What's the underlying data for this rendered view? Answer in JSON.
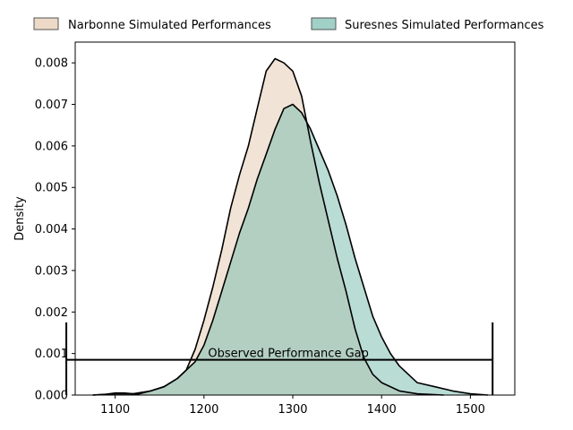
{
  "chart_data": {
    "type": "area",
    "title": "",
    "xlabel": "",
    "ylabel": "Density",
    "xlim": [
      1055,
      1550
    ],
    "ylim": [
      0,
      0.0085
    ],
    "x_ticks": [
      1100,
      1200,
      1300,
      1400,
      1500
    ],
    "y_ticks": [
      0.0,
      0.001,
      0.002,
      0.003,
      0.004,
      0.005,
      0.006,
      0.007,
      0.008
    ],
    "x_tick_labels": [
      "1100",
      "1200",
      "1300",
      "1400",
      "1500"
    ],
    "y_tick_labels": [
      "0.000",
      "0.001",
      "0.002",
      "0.003",
      "0.004",
      "0.005",
      "0.006",
      "0.007",
      "0.008"
    ],
    "grid": false,
    "legend_position": "top, outside plot",
    "series": [
      {
        "name": "Narbonne Simulated Performances",
        "color": "#e6ccb3",
        "points": [
          [
            1075,
            0
          ],
          [
            1100,
            3e-05
          ],
          [
            1120,
            3e-05
          ],
          [
            1140,
            0.0001
          ],
          [
            1155,
            0.0002
          ],
          [
            1170,
            0.0004
          ],
          [
            1180,
            0.0006
          ],
          [
            1190,
            0.0011
          ],
          [
            1200,
            0.0018
          ],
          [
            1210,
            0.0026
          ],
          [
            1220,
            0.0035
          ],
          [
            1230,
            0.0045
          ],
          [
            1240,
            0.0053
          ],
          [
            1250,
            0.006
          ],
          [
            1260,
            0.0069
          ],
          [
            1270,
            0.0078
          ],
          [
            1280,
            0.0081
          ],
          [
            1290,
            0.008
          ],
          [
            1300,
            0.0078
          ],
          [
            1310,
            0.0072
          ],
          [
            1320,
            0.0061
          ],
          [
            1330,
            0.0051
          ],
          [
            1340,
            0.0042
          ],
          [
            1350,
            0.0033
          ],
          [
            1360,
            0.0025
          ],
          [
            1370,
            0.0016
          ],
          [
            1380,
            0.0009
          ],
          [
            1390,
            0.0005
          ],
          [
            1400,
            0.0003
          ],
          [
            1420,
            0.0001
          ],
          [
            1440,
            3e-05
          ],
          [
            1470,
            0
          ]
        ]
      },
      {
        "name": "Suresnes Simulated Performances",
        "color": "#80c0b3",
        "points": [
          [
            1075,
            0
          ],
          [
            1090,
            2e-05
          ],
          [
            1100,
            5e-05
          ],
          [
            1110,
            5e-05
          ],
          [
            1125,
            2e-05
          ],
          [
            1140,
            0.0001
          ],
          [
            1155,
            0.0002
          ],
          [
            1170,
            0.0004
          ],
          [
            1180,
            0.0006
          ],
          [
            1190,
            0.0008
          ],
          [
            1200,
            0.0012
          ],
          [
            1210,
            0.0018
          ],
          [
            1220,
            0.0025
          ],
          [
            1230,
            0.0032
          ],
          [
            1240,
            0.0039
          ],
          [
            1250,
            0.0045
          ],
          [
            1260,
            0.0052
          ],
          [
            1270,
            0.0058
          ],
          [
            1280,
            0.0064
          ],
          [
            1290,
            0.0069
          ],
          [
            1300,
            0.007
          ],
          [
            1310,
            0.0068
          ],
          [
            1320,
            0.0064
          ],
          [
            1330,
            0.0059
          ],
          [
            1340,
            0.0054
          ],
          [
            1350,
            0.0048
          ],
          [
            1360,
            0.0041
          ],
          [
            1370,
            0.0033
          ],
          [
            1380,
            0.0026
          ],
          [
            1390,
            0.0019
          ],
          [
            1400,
            0.0014
          ],
          [
            1410,
            0.001
          ],
          [
            1420,
            0.0007
          ],
          [
            1430,
            0.0005
          ],
          [
            1440,
            0.0003
          ],
          [
            1460,
            0.0002
          ],
          [
            1480,
            0.0001
          ],
          [
            1500,
            3e-05
          ],
          [
            1520,
            0
          ]
        ]
      }
    ],
    "annotations": [
      {
        "text": "Observed Performance Gap",
        "x_start": 1045,
        "x_end": 1525,
        "y": 0.00085,
        "cap_top": 0.00175
      }
    ]
  }
}
